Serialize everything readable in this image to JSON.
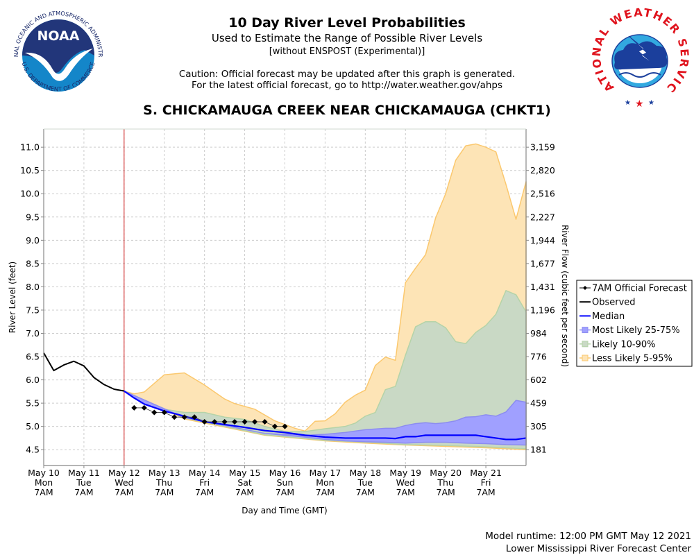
{
  "header": {
    "title": "10 Day River Level Probabilities",
    "subtitle": "Used to Estimate the Range of Possible River Levels",
    "subtitle2": "[without ENSPOST (Experimental)]",
    "caution_line1": "Caution: Official forecast may be updated after this graph is generated.",
    "caution_line2": "For the latest official forecast, go to http://water.weather.gov/ahps",
    "station": "S. CHICKAMAUGA CREEK NEAR CHICKAMAUGA (CHKT1)"
  },
  "logos": {
    "left": {
      "name": "NOAA",
      "ring_text_top": "NATIONAL OCEANIC AND ATMOSPHERIC ADMINISTRATION",
      "ring_text_bottom": "U.S. DEPARTMENT OF COMMERCE"
    },
    "right": {
      "ring_text": "NATIONAL WEATHER SERVICE"
    }
  },
  "footer": {
    "runtime": "Model runtime: 12:00 PM GMT May 12 2021",
    "center": "Lower Mississippi River Forecast Center"
  },
  "colors": {
    "observed": "#000000",
    "median": "#0000ff",
    "band_25_75": "#a0a0ff",
    "band_10_90": "#c9d9c5",
    "band_5_95": "#fde4b6",
    "band_5_95_edge": "#fbc86e",
    "band_10_90_edge": "#b5d3a8",
    "now_line": "#d02020",
    "grid": "#cccccc"
  },
  "chart_data": {
    "type": "area",
    "title": "10 Day River Level Probabilities",
    "xlabel": "Day and Time (GMT)",
    "ylabel": "River Level (feet)",
    "ylabel_right": "River Flow (cubic feet per second)",
    "x_unit": "days since May 10 7AM",
    "xlim": [
      0,
      12
    ],
    "ylim": [
      4.16,
      11.39
    ],
    "grid": true,
    "legend_position": "right",
    "now_marker_x": 2.0,
    "x_ticks": [
      {
        "x": 0,
        "date": "May 10",
        "day": "Mon",
        "time": "7AM"
      },
      {
        "x": 1,
        "date": "May 11",
        "day": "Tue",
        "time": "7AM"
      },
      {
        "x": 2,
        "date": "May 12",
        "day": "Wed",
        "time": "7AM"
      },
      {
        "x": 3,
        "date": "May 13",
        "day": "Thu",
        "time": "7AM"
      },
      {
        "x": 4,
        "date": "May 14",
        "day": "Fri",
        "time": "7AM"
      },
      {
        "x": 5,
        "date": "May 15",
        "day": "Sat",
        "time": "7AM"
      },
      {
        "x": 6,
        "date": "May 16",
        "day": "Sun",
        "time": "7AM"
      },
      {
        "x": 7,
        "date": "May 17",
        "day": "Mon",
        "time": "7AM"
      },
      {
        "x": 8,
        "date": "May 18",
        "day": "Tue",
        "time": "7AM"
      },
      {
        "x": 9,
        "date": "May 19",
        "day": "Wed",
        "time": "7AM"
      },
      {
        "x": 10,
        "date": "May 20",
        "day": "Thu",
        "time": "7AM"
      },
      {
        "x": 11,
        "date": "May 21",
        "day": "Fri",
        "time": "7AM"
      }
    ],
    "y_ticks_left": [
      "4.5",
      "5.0",
      "5.5",
      "6.0",
      "6.5",
      "7.0",
      "7.5",
      "8.0",
      "8.5",
      "9.0",
      "9.5",
      "10.0",
      "10.5",
      "11.0"
    ],
    "y_ticks_right": [
      "181",
      "305",
      "459",
      "602",
      "776",
      "984",
      "1,196",
      "1,431",
      "1,677",
      "1,944",
      "2,227",
      "2,516",
      "2,820",
      "3,159"
    ],
    "legend": [
      {
        "key": "official",
        "label": "7AM Official Forecast"
      },
      {
        "key": "observed",
        "label": "Observed"
      },
      {
        "key": "median",
        "label": "Median"
      },
      {
        "key": "b2575",
        "label": "Most Likely 25-75%"
      },
      {
        "key": "b1090",
        "label": "Likely 10-90%"
      },
      {
        "key": "b0595",
        "label": "Less Likely 5-95%"
      }
    ],
    "observed": {
      "x": [
        0,
        0.25,
        0.5,
        0.75,
        1.0,
        1.25,
        1.5,
        1.75,
        2.0
      ],
      "y": [
        6.58,
        6.2,
        6.32,
        6.4,
        6.3,
        6.05,
        5.9,
        5.8,
        5.76
      ]
    },
    "official_forecast": {
      "x": [
        2.25,
        2.5,
        2.75,
        3.0,
        3.25,
        3.5,
        3.75,
        4.0,
        4.25,
        4.5,
        4.75,
        5.0,
        5.25,
        5.5,
        5.75,
        6.0
      ],
      "y": [
        5.4,
        5.4,
        5.3,
        5.3,
        5.2,
        5.2,
        5.2,
        5.1,
        5.1,
        5.1,
        5.1,
        5.1,
        5.1,
        5.1,
        5.0,
        5.0
      ]
    },
    "median": {
      "x": [
        2.0,
        2.25,
        2.5,
        3.0,
        3.5,
        4.0,
        4.5,
        5.0,
        5.5,
        6.0,
        6.5,
        7.0,
        7.5,
        8.0,
        8.5,
        8.75,
        9.0,
        9.25,
        9.5,
        9.75,
        10.25,
        10.75,
        11.0,
        11.25,
        11.5,
        11.75,
        12.0
      ],
      "y": [
        5.76,
        5.61,
        5.48,
        5.33,
        5.22,
        5.1,
        5.04,
        4.98,
        4.91,
        4.87,
        4.81,
        4.77,
        4.75,
        4.75,
        4.75,
        4.74,
        4.78,
        4.78,
        4.81,
        4.81,
        4.81,
        4.81,
        4.78,
        4.75,
        4.72,
        4.72,
        4.75
      ]
    },
    "band_5_95": {
      "x_upper": [
        2.0,
        2.25,
        2.5,
        3.0,
        3.5,
        4.0,
        4.5,
        4.75,
        5.25,
        5.75,
        6.25,
        6.5,
        6.75,
        7.0,
        7.25,
        7.5,
        7.75,
        8.0,
        8.25,
        8.5,
        8.75,
        9.0,
        9.25,
        9.5,
        9.75,
        10.0,
        10.25,
        10.5,
        10.75,
        11.0,
        11.25,
        11.5,
        11.75,
        12.0
      ],
      "upper": [
        5.76,
        5.7,
        5.74,
        6.11,
        6.15,
        5.89,
        5.59,
        5.49,
        5.37,
        5.12,
        4.96,
        4.9,
        5.11,
        5.12,
        5.27,
        5.52,
        5.67,
        5.78,
        6.31,
        6.49,
        6.42,
        8.09,
        8.4,
        8.69,
        9.48,
        10.0,
        10.72,
        11.03,
        11.07,
        11.0,
        10.9,
        10.2,
        9.45,
        10.26
      ],
      "x_lower": [
        2.0,
        3.5,
        5.5,
        7.0,
        8.0,
        9.0,
        10.0,
        11.0,
        11.5,
        12.0
      ],
      "lower": [
        5.76,
        5.16,
        4.81,
        4.69,
        4.64,
        4.6,
        4.57,
        4.54,
        4.52,
        4.5
      ]
    },
    "band_10_90": {
      "x_upper": [
        2.0,
        2.5,
        3.0,
        3.5,
        4.0,
        4.5,
        5.0,
        5.5,
        6.0,
        6.5,
        7.0,
        7.5,
        7.75,
        8.0,
        8.25,
        8.5,
        8.75,
        9.0,
        9.25,
        9.5,
        9.75,
        10.0,
        10.25,
        10.5,
        10.75,
        11.0,
        11.25,
        11.5,
        11.75,
        12.0
      ],
      "upper": [
        5.76,
        5.48,
        5.37,
        5.3,
        5.3,
        5.2,
        5.15,
        5.0,
        4.89,
        4.89,
        4.95,
        5.0,
        5.07,
        5.22,
        5.3,
        5.79,
        5.86,
        6.53,
        7.14,
        7.25,
        7.25,
        7.12,
        6.82,
        6.78,
        7.02,
        7.17,
        7.41,
        7.92,
        7.83,
        7.46
      ],
      "x_lower": [
        2.0,
        3.5,
        5.5,
        7.0,
        8.0,
        9.0,
        10.0,
        11.0,
        12.0
      ],
      "lower": [
        5.76,
        5.18,
        4.82,
        4.7,
        4.66,
        4.61,
        4.59,
        4.56,
        4.52
      ]
    },
    "band_25_75": {
      "x_upper": [
        2.0,
        2.5,
        3.5,
        4.5,
        5.5,
        6.5,
        7.0,
        7.5,
        8.0,
        8.5,
        8.75,
        9.0,
        9.25,
        9.5,
        9.75,
        10.0,
        10.25,
        10.5,
        10.75,
        11.0,
        11.25,
        11.5,
        11.75,
        12.0
      ],
      "upper": [
        5.76,
        5.48,
        5.22,
        5.02,
        4.85,
        4.81,
        4.83,
        4.87,
        4.93,
        4.96,
        4.96,
        5.02,
        5.06,
        5.08,
        5.06,
        5.08,
        5.12,
        5.2,
        5.21,
        5.25,
        5.22,
        5.31,
        5.56,
        5.52
      ],
      "x_lower": [
        2.0,
        3.5,
        4.5,
        5.5,
        6.5,
        7.0,
        7.5,
        8.0,
        8.5,
        9.0,
        9.5,
        10.0,
        10.5,
        11.0,
        11.5,
        12.0
      ],
      "lower": [
        5.76,
        5.19,
        5.02,
        4.85,
        4.77,
        4.72,
        4.69,
        4.67,
        4.66,
        4.64,
        4.66,
        4.66,
        4.64,
        4.63,
        4.61,
        4.6
      ]
    }
  }
}
